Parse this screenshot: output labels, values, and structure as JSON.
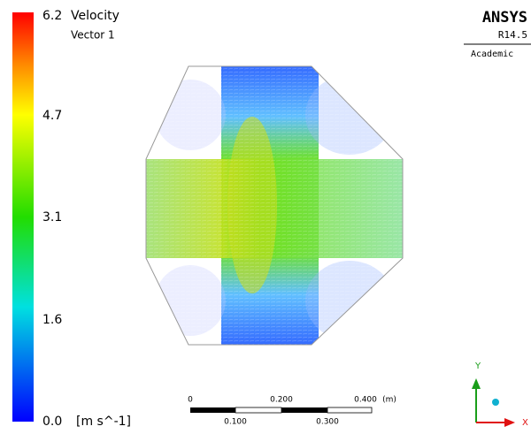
{
  "legend": {
    "title": "Velocity",
    "subtitle": "Vector 1",
    "ticks": [
      "6.2",
      "4.7",
      "3.1",
      "1.6",
      "0.0"
    ],
    "unit": "[m s^-1]"
  },
  "logo": {
    "name": "ANSYS",
    "release": "R14.5",
    "edition": "Academic"
  },
  "scale_bar": {
    "top_labels": [
      "0",
      "0.200",
      "0.400"
    ],
    "unit": "(m)",
    "bottom_labels": [
      "0.100",
      "0.300"
    ]
  },
  "axes_triad": {
    "y": "Y",
    "x": "X"
  }
}
